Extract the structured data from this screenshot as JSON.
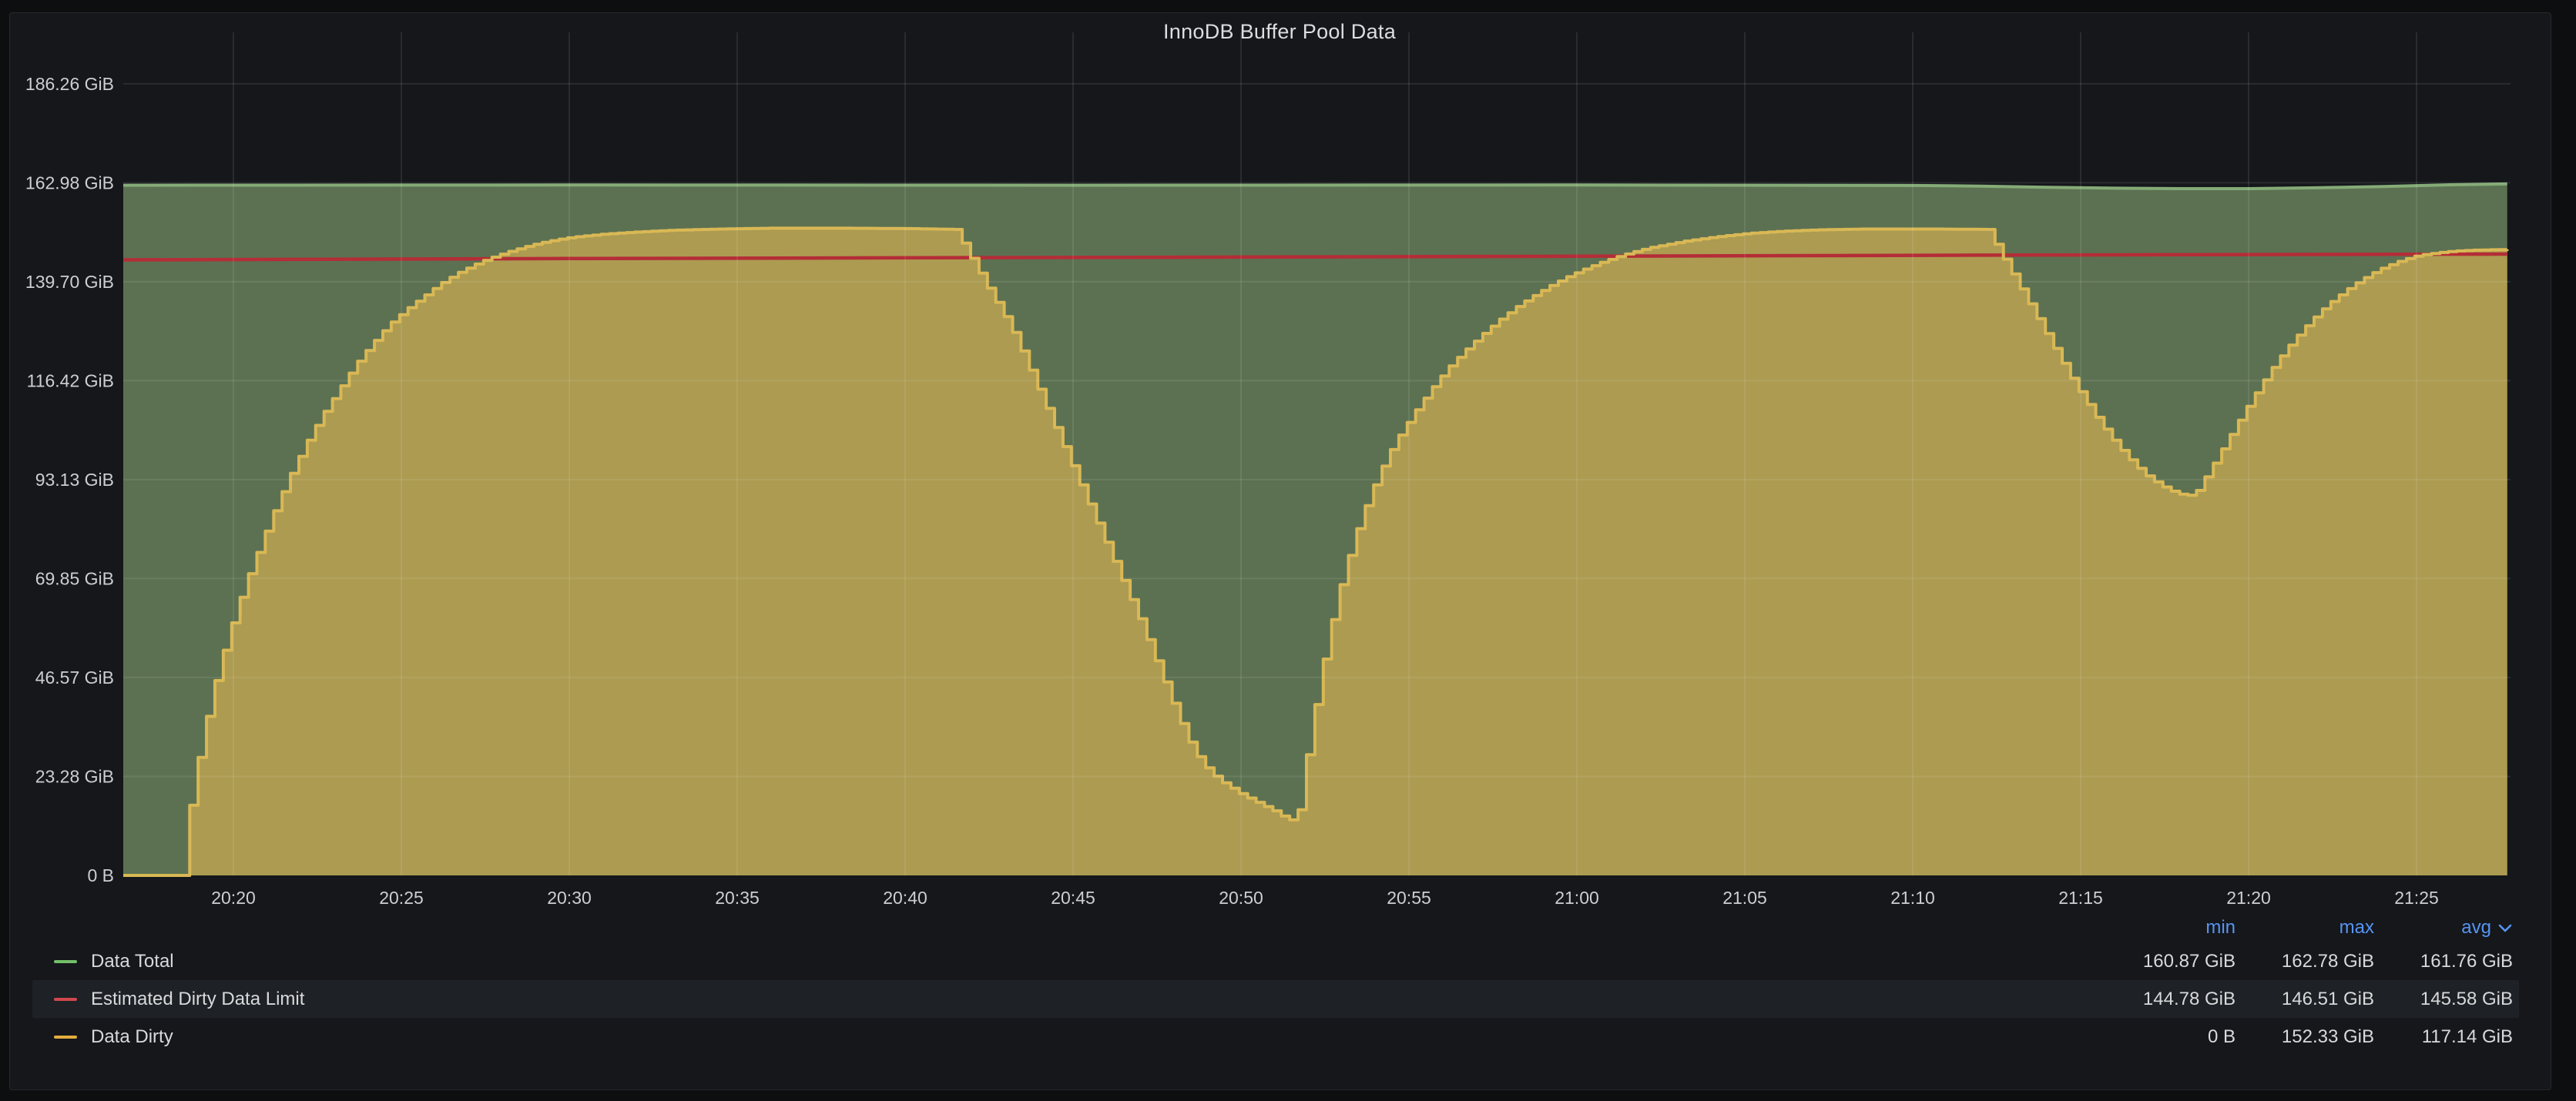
{
  "panel": {
    "title": "InnoDB Buffer Pool Data"
  },
  "colors": {
    "page_background": "#0d0e10",
    "panel_background": "#15171b",
    "panel_border": "#26282c",
    "grid_line": "rgba(255,255,255,0.085)",
    "axis_text": "#cdced1",
    "legend_text": "#d8d9da",
    "legend_header_blue": "#5794f2",
    "legend_highlight_row": "#1e2125"
  },
  "chart_data": {
    "type": "area",
    "title": "InnoDB Buffer Pool Data",
    "y_unit": "GiB",
    "x_unit": "time HH:MM",
    "grid": true,
    "x_range_minutes_after_20_00": [
      16.7,
      87.7
    ],
    "ylim": [
      0,
      197
    ],
    "x_ticks": [
      {
        "label": "20:20",
        "t": 20
      },
      {
        "label": "20:25",
        "t": 25
      },
      {
        "label": "20:30",
        "t": 30
      },
      {
        "label": "20:35",
        "t": 35
      },
      {
        "label": "20:40",
        "t": 40
      },
      {
        "label": "20:45",
        "t": 45
      },
      {
        "label": "20:50",
        "t": 50
      },
      {
        "label": "20:55",
        "t": 55
      },
      {
        "label": "21:00",
        "t": 60
      },
      {
        "label": "21:05",
        "t": 65
      },
      {
        "label": "21:10",
        "t": 70
      },
      {
        "label": "21:15",
        "t": 75
      },
      {
        "label": "21:20",
        "t": 80
      },
      {
        "label": "21:25",
        "t": 85
      }
    ],
    "y_ticks": [
      {
        "label": "0 B",
        "value": 0
      },
      {
        "label": "23.28 GiB",
        "value": 23.28
      },
      {
        "label": "46.57 GiB",
        "value": 46.57
      },
      {
        "label": "69.85 GiB",
        "value": 69.85
      },
      {
        "label": "93.13 GiB",
        "value": 93.13
      },
      {
        "label": "116.42 GiB",
        "value": 116.42
      },
      {
        "label": "139.70 GiB",
        "value": 139.7
      },
      {
        "label": "162.98 GiB",
        "value": 162.98
      },
      {
        "label": "186.26 GiB",
        "value": 186.26
      }
    ],
    "series": [
      {
        "name": "Data Total",
        "style": "line-area",
        "stepped": false,
        "color_line": "#85ab77",
        "color_fill": "#5c7152",
        "points": [
          [
            16.7,
            162.4
          ],
          [
            30,
            162.45
          ],
          [
            45,
            162.4
          ],
          [
            60,
            162.45
          ],
          [
            70,
            162.35
          ],
          [
            72,
            162.2
          ],
          [
            74,
            161.9
          ],
          [
            76,
            161.7
          ],
          [
            78,
            161.6
          ],
          [
            80,
            161.6
          ],
          [
            82,
            161.8
          ],
          [
            84,
            162.1
          ],
          [
            86,
            162.5
          ],
          [
            87.7,
            162.7
          ]
        ]
      },
      {
        "name": "Estimated Dirty Data Limit",
        "style": "line",
        "stepped": false,
        "color_line": "#b42d37",
        "color_fill": null,
        "points": [
          [
            16.7,
            144.85
          ],
          [
            30,
            145.15
          ],
          [
            45,
            145.4
          ],
          [
            60,
            145.7
          ],
          [
            75,
            146.0
          ],
          [
            87.7,
            146.2
          ]
        ]
      },
      {
        "name": "Data Dirty",
        "style": "line-area",
        "stepped": true,
        "step_minutes": 0.25,
        "color_line": "#d9b855",
        "color_fill": "#ac9b51",
        "points": [
          [
            16.7,
            0
          ],
          [
            18.55,
            0
          ],
          [
            18.6,
            12
          ],
          [
            19.0,
            30
          ],
          [
            19.35,
            43
          ],
          [
            19.7,
            53
          ],
          [
            20.05,
            62
          ],
          [
            20.4,
            70
          ],
          [
            20.75,
            77
          ],
          [
            21.1,
            84
          ],
          [
            21.6,
            93
          ],
          [
            22.1,
            101
          ],
          [
            22.6,
            108
          ],
          [
            23.1,
            114
          ],
          [
            23.6,
            120
          ],
          [
            24.1,
            125
          ],
          [
            24.6,
            129.5
          ],
          [
            25.1,
            133
          ],
          [
            25.6,
            136
          ],
          [
            26.1,
            139
          ],
          [
            26.6,
            141.5
          ],
          [
            27.1,
            143.5
          ],
          [
            27.6,
            145.2
          ],
          [
            28.1,
            146.6
          ],
          [
            28.6,
            147.8
          ],
          [
            29.1,
            148.8
          ],
          [
            29.6,
            149.6
          ],
          [
            30.1,
            150.2
          ],
          [
            31,
            150.9
          ],
          [
            32,
            151.4
          ],
          [
            33,
            151.8
          ],
          [
            34.5,
            152.1
          ],
          [
            36,
            152.3
          ],
          [
            38,
            152.3
          ],
          [
            40,
            152.2
          ],
          [
            41.5,
            152.0
          ],
          [
            41.75,
            148
          ],
          [
            42,
            144.5
          ],
          [
            42.25,
            141
          ],
          [
            42.5,
            137.5
          ],
          [
            43,
            130.8
          ],
          [
            43.25,
            127
          ],
          [
            43.5,
            122.5
          ],
          [
            44,
            113.5
          ],
          [
            44.5,
            104.5
          ],
          [
            45,
            95.5
          ],
          [
            45.5,
            86.5
          ],
          [
            46,
            77.5
          ],
          [
            46.5,
            68.5
          ],
          [
            47,
            59.5
          ],
          [
            47.25,
            54.5
          ],
          [
            47.5,
            49.5
          ],
          [
            47.75,
            44.5
          ],
          [
            48,
            39.5
          ],
          [
            48.25,
            34.8
          ],
          [
            48.5,
            30.5
          ],
          [
            48.75,
            27.3
          ],
          [
            49,
            24.8
          ],
          [
            49.25,
            23
          ],
          [
            49.5,
            21.5
          ],
          [
            50,
            19
          ],
          [
            50.5,
            17
          ],
          [
            51,
            15
          ],
          [
            51.35,
            13.2
          ],
          [
            51.65,
            12.8
          ],
          [
            51.9,
            26
          ],
          [
            52.15,
            38
          ],
          [
            52.4,
            49
          ],
          [
            52.65,
            58.5
          ],
          [
            52.9,
            67
          ],
          [
            53.15,
            74
          ],
          [
            53.4,
            80.5
          ],
          [
            53.65,
            86
          ],
          [
            53.9,
            91
          ],
          [
            54.15,
            95.5
          ],
          [
            54.4,
            99.5
          ],
          [
            54.65,
            103
          ],
          [
            55.15,
            109
          ],
          [
            55.65,
            114.5
          ],
          [
            56.15,
            119.5
          ],
          [
            56.65,
            123.5
          ],
          [
            57.15,
            127.2
          ],
          [
            57.65,
            130.6
          ],
          [
            58.15,
            133.6
          ],
          [
            58.65,
            136.2
          ],
          [
            59.15,
            138.6
          ],
          [
            59.65,
            140.7
          ],
          [
            60.15,
            142.5
          ],
          [
            60.65,
            144.1
          ],
          [
            61.15,
            145.5
          ],
          [
            61.65,
            146.7
          ],
          [
            62.15,
            147.7
          ],
          [
            63.15,
            149.2
          ],
          [
            64.15,
            150.3
          ],
          [
            65.15,
            151.1
          ],
          [
            66.15,
            151.6
          ],
          [
            67.15,
            151.9
          ],
          [
            68.5,
            152.1
          ],
          [
            70.5,
            152.1
          ],
          [
            72.2,
            152.0
          ],
          [
            72.45,
            148.5
          ],
          [
            72.7,
            145
          ],
          [
            72.95,
            141.5
          ],
          [
            73.2,
            138
          ],
          [
            73.45,
            134.5
          ],
          [
            73.7,
            131
          ],
          [
            73.95,
            127.5
          ],
          [
            74.2,
            124
          ],
          [
            74.45,
            120.5
          ],
          [
            74.7,
            117
          ],
          [
            74.95,
            113.8
          ],
          [
            75.2,
            110.8
          ],
          [
            75.45,
            107.8
          ],
          [
            75.7,
            105
          ],
          [
            75.95,
            102.4
          ],
          [
            76.2,
            100
          ],
          [
            76.45,
            97.8
          ],
          [
            76.7,
            95.8
          ],
          [
            76.95,
            94
          ],
          [
            77.2,
            92.6
          ],
          [
            77.45,
            91.4
          ],
          [
            77.7,
            90.4
          ],
          [
            77.95,
            89.7
          ],
          [
            78.35,
            89.3
          ],
          [
            78.6,
            92.5
          ],
          [
            78.85,
            95.7
          ],
          [
            79.1,
            99
          ],
          [
            79.35,
            102.4
          ],
          [
            79.6,
            105.8
          ],
          [
            79.85,
            109.1
          ],
          [
            80.1,
            112.3
          ],
          [
            80.35,
            115.4
          ],
          [
            80.6,
            118.4
          ],
          [
            80.85,
            121.2
          ],
          [
            81.1,
            123.8
          ],
          [
            81.35,
            126.2
          ],
          [
            81.6,
            128.5
          ],
          [
            81.85,
            130.6
          ],
          [
            82.1,
            132.6
          ],
          [
            82.35,
            134.4
          ],
          [
            82.6,
            136
          ],
          [
            82.85,
            137.5
          ],
          [
            83.1,
            138.9
          ],
          [
            83.35,
            140.2
          ],
          [
            83.6,
            141.4
          ],
          [
            83.85,
            142.5
          ],
          [
            84.1,
            143.4
          ],
          [
            84.35,
            144.2
          ],
          [
            84.6,
            144.9
          ],
          [
            84.85,
            145.5
          ],
          [
            85.1,
            146
          ],
          [
            85.6,
            146.5
          ],
          [
            86.1,
            146.9
          ],
          [
            86.6,
            147.1
          ],
          [
            87.7,
            147.3
          ]
        ]
      }
    ]
  },
  "legend": {
    "headers": [
      {
        "label": "min"
      },
      {
        "label": "max"
      },
      {
        "label": "avg",
        "sorted": true
      }
    ],
    "rows": [
      {
        "name": "Data Total",
        "color": "#73bf69",
        "min": "160.87 GiB",
        "max": "162.78 GiB",
        "avg": "161.76 GiB",
        "highlighted": false
      },
      {
        "name": "Estimated Dirty Data Limit",
        "color": "#d2484f",
        "min": "144.78 GiB",
        "max": "146.51 GiB",
        "avg": "145.58 GiB",
        "highlighted": true
      },
      {
        "name": "Data Dirty",
        "color": "#e3ae3d",
        "min": "0 B",
        "max": "152.33 GiB",
        "avg": "117.14 GiB",
        "highlighted": false
      }
    ]
  }
}
